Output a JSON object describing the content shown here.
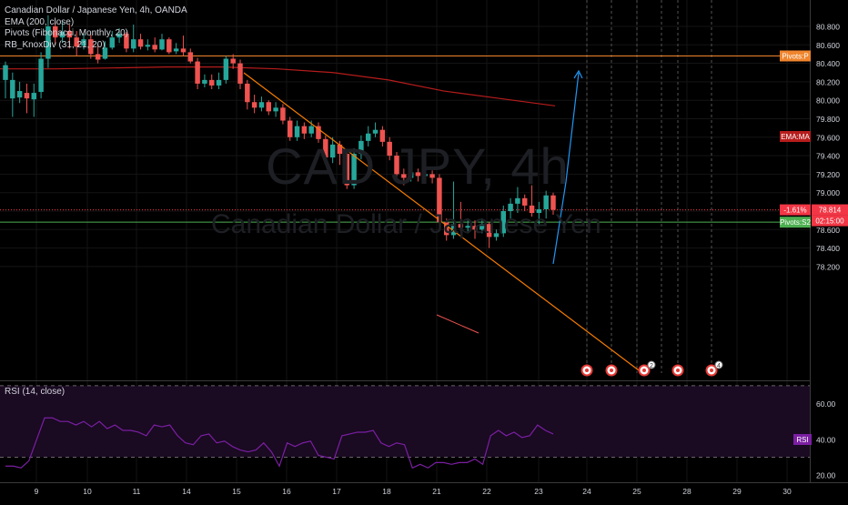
{
  "legend": {
    "title": "Canadian Dollar / Japanese Yen, 4h, OANDA",
    "ema": "EMA (200, close)",
    "pivots": "Pivots (Fibonacci, Monthly, 20)",
    "knox": "RB_KnoxDiv (31, 21, 20)"
  },
  "rsi_legend": "RSI (14, close)",
  "watermark": {
    "symbol": "CAD JPY, 4h",
    "name": "Canadian Dollar / Japanese Yen"
  },
  "colors": {
    "up": "#26a69a",
    "down": "#ef5350",
    "ema": "#b71c1c",
    "pivot_p": "#f0852d",
    "pivot_s2": "#4caf50",
    "trend": "#f57c00",
    "projection": "#2196f3",
    "rsi": "#7b1fa2",
    "last_price": "#f23645"
  },
  "chart_data": [
    {
      "type": "candlestick",
      "title": "Canadian Dollar / Japanese Yen, 4h, OANDA",
      "y_ticks": [
        "80.800",
        "80.600",
        "80.400",
        "80.200",
        "80.000",
        "79.800",
        "79.600",
        "79.400",
        "79.200",
        "79.000",
        "78.800",
        "78.600",
        "78.400",
        "78.200"
      ],
      "ylim": [
        78.05,
        80.92
      ],
      "x_ticks": [
        "9",
        "10",
        "11",
        "14",
        "15",
        "16",
        "17",
        "18",
        "21",
        "22",
        "23",
        "24",
        "25",
        "28",
        "29",
        "30"
      ],
      "candles": [
        [
          80.22,
          80.38,
          80.42,
          80.02
        ],
        [
          80.02,
          80.22,
          80.3,
          79.82
        ],
        [
          80.03,
          80.1,
          80.2,
          79.97
        ],
        [
          80.08,
          80.02,
          80.18,
          79.86
        ],
        [
          80.01,
          80.08,
          80.18,
          79.82
        ],
        [
          80.09,
          80.45,
          80.52,
          80.02
        ],
        [
          80.45,
          80.8,
          80.92,
          80.35
        ],
        [
          80.8,
          80.68,
          80.85,
          80.6
        ],
        [
          80.68,
          80.74,
          80.85,
          80.62
        ],
        [
          80.75,
          80.68,
          80.82,
          80.56
        ],
        [
          80.68,
          80.58,
          80.75,
          80.48
        ],
        [
          80.59,
          80.66,
          80.72,
          80.55
        ],
        [
          80.66,
          80.5,
          80.71,
          80.45
        ],
        [
          80.5,
          80.44,
          80.6,
          80.4
        ],
        [
          80.45,
          80.57,
          80.64,
          80.44
        ],
        [
          80.57,
          80.68,
          80.75,
          80.55
        ],
        [
          80.68,
          80.72,
          80.78,
          80.62
        ],
        [
          80.72,
          80.56,
          80.74,
          80.52
        ],
        [
          80.56,
          80.66,
          80.82,
          80.52
        ],
        [
          80.66,
          80.58,
          80.72,
          80.55
        ],
        [
          80.58,
          80.6,
          80.66,
          80.54
        ],
        [
          80.6,
          80.55,
          80.68,
          80.52
        ],
        [
          80.55,
          80.66,
          80.72,
          80.54
        ],
        [
          80.66,
          80.52,
          80.68,
          80.5
        ],
        [
          80.53,
          80.56,
          80.62,
          80.5
        ],
        [
          80.56,
          80.52,
          80.7,
          80.48
        ],
        [
          80.52,
          80.42,
          80.56,
          80.4
        ],
        [
          80.42,
          80.18,
          80.46,
          80.12
        ],
        [
          80.18,
          80.22,
          80.28,
          80.14
        ],
        [
          80.22,
          80.16,
          80.28,
          80.12
        ],
        [
          80.16,
          80.22,
          80.3,
          80.12
        ],
        [
          80.22,
          80.45,
          80.48,
          80.18
        ],
        [
          80.45,
          80.4,
          80.5,
          80.34
        ],
        [
          80.4,
          80.18,
          80.44,
          80.12
        ],
        [
          80.18,
          79.98,
          80.22,
          79.9
        ],
        [
          79.98,
          79.92,
          80.06,
          79.86
        ],
        [
          79.92,
          79.98,
          80.04,
          79.88
        ],
        [
          79.98,
          79.88,
          80.0,
          79.84
        ],
        [
          79.88,
          79.92,
          79.98,
          79.82
        ],
        [
          79.92,
          79.78,
          79.96,
          79.74
        ],
        [
          79.78,
          79.6,
          79.82,
          79.56
        ],
        [
          79.6,
          79.72,
          79.78,
          79.56
        ],
        [
          79.72,
          79.64,
          79.76,
          79.58
        ],
        [
          79.64,
          79.72,
          79.78,
          79.6
        ],
        [
          79.72,
          79.58,
          79.76,
          79.54
        ],
        [
          79.58,
          79.38,
          79.62,
          79.34
        ],
        [
          79.38,
          79.52,
          79.6,
          79.32
        ],
        [
          79.52,
          79.42,
          79.56,
          79.3
        ],
        [
          79.42,
          79.08,
          79.46,
          79.04
        ],
        [
          79.08,
          79.42,
          79.48,
          79.04
        ],
        [
          79.42,
          79.56,
          79.62,
          79.36
        ],
        [
          79.56,
          79.64,
          79.72,
          79.5
        ],
        [
          79.64,
          79.68,
          79.76,
          79.6
        ],
        [
          79.68,
          79.55,
          79.72,
          79.5
        ],
        [
          79.55,
          79.4,
          79.6,
          79.35
        ],
        [
          79.4,
          79.2,
          79.44,
          79.14
        ],
        [
          79.2,
          79.16,
          79.26,
          79.08
        ],
        [
          79.16,
          79.22,
          79.28,
          79.12
        ],
        [
          79.22,
          79.18,
          79.26,
          79.12
        ],
        [
          79.18,
          79.2,
          79.26,
          79.14
        ],
        [
          79.2,
          79.16,
          79.24,
          79.1
        ],
        [
          79.16,
          78.68,
          79.2,
          78.64
        ],
        [
          78.68,
          78.54,
          78.72,
          78.48
        ],
        [
          78.54,
          78.66,
          79.12,
          78.5
        ],
        [
          78.66,
          78.62,
          78.9,
          78.58
        ],
        [
          78.62,
          78.64,
          78.72,
          78.56
        ],
        [
          78.64,
          78.6,
          78.7,
          78.5
        ],
        [
          78.6,
          78.66,
          78.72,
          78.56
        ],
        [
          78.66,
          78.52,
          78.68,
          78.4
        ],
        [
          78.52,
          78.56,
          78.6,
          78.48
        ],
        [
          78.56,
          78.8,
          78.86,
          78.52
        ],
        [
          78.8,
          78.88,
          78.94,
          78.72
        ],
        [
          78.88,
          78.94,
          79.06,
          78.78
        ],
        [
          78.94,
          78.86,
          78.98,
          78.8
        ],
        [
          78.86,
          78.78,
          79.08,
          78.74
        ],
        [
          78.78,
          78.82,
          78.9,
          78.66
        ],
        [
          78.82,
          78.97,
          79.02,
          78.72
        ],
        [
          78.97,
          78.814,
          79.0,
          78.76
        ]
      ],
      "ema200": [
        80.34,
        80.34,
        80.35,
        80.36,
        80.36,
        80.34,
        80.3,
        80.22,
        80.1,
        80.02,
        79.94
      ],
      "pivots": [
        {
          "label": "Pivots:P",
          "value": 80.48
        },
        {
          "label": "Pivots:S2",
          "value": 78.68
        }
      ],
      "ema_label": "EMA:MA",
      "last_price": {
        "value": 78.814,
        "change": "-1.61%",
        "price_text": "78.814",
        "countdown": "02:15:00"
      },
      "trendline": [
        [
          80.44
        ],
        [
          78.1
        ]
      ],
      "projection_target": 80.44,
      "divergence_lows": [
        78.54,
        78.4
      ]
    },
    {
      "type": "line",
      "title": "RSI (14, close)",
      "y_ticks": [
        "60.00",
        "40.00",
        "20.00"
      ],
      "ylim": [
        17,
        73
      ],
      "bands": [
        70,
        30
      ],
      "values": [
        25,
        25,
        24,
        28,
        40,
        52,
        52,
        50,
        50,
        48,
        50,
        47,
        50,
        46,
        48,
        45,
        45,
        44,
        42,
        48,
        47,
        48,
        42,
        38,
        37,
        42,
        43,
        38,
        39,
        36,
        34,
        33,
        34,
        38,
        33,
        25,
        38,
        36,
        38,
        39,
        31,
        30,
        29,
        42,
        43,
        44,
        44,
        45,
        38,
        36,
        38,
        37,
        24,
        26,
        24,
        27,
        27,
        26,
        27,
        27,
        29,
        26,
        42,
        45,
        42,
        44,
        41,
        42,
        48,
        45,
        43
      ],
      "rsi_label": "RSI"
    }
  ],
  "markers": {
    "counts": [
      "2",
      "4"
    ]
  }
}
